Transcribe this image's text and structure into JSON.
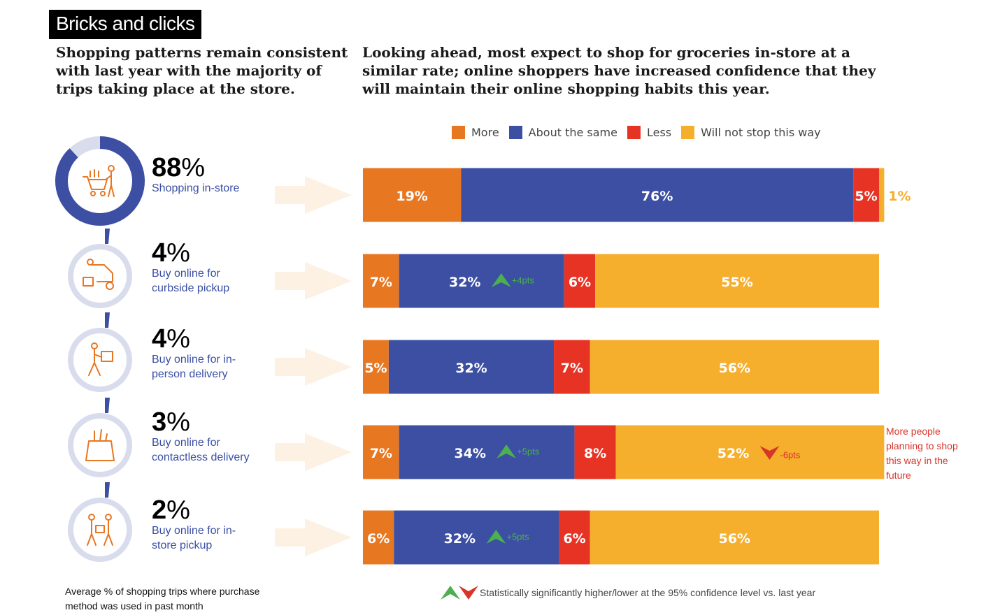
{
  "title": "Bricks and clicks",
  "left_heading": "Shopping patterns remain consistent with last year with the majority of trips taking place at the store.",
  "right_heading": "Looking ahead, most expect to shop for groceries in-store at a similar rate; online shoppers have increased confidence that they will maintain their online shopping habits this year.",
  "methods": [
    {
      "pct_num": "88",
      "pct_sign": "%",
      "label": "Shopping in-store",
      "icon": "shopping-cart-icon",
      "share": 88
    },
    {
      "pct_num": "4",
      "pct_sign": "%",
      "label": "Buy online for curbside pickup",
      "icon": "curbside-pickup-icon",
      "share": 4
    },
    {
      "pct_num": "4",
      "pct_sign": "%",
      "label": "Buy online for in-person delivery",
      "icon": "delivery-person-icon",
      "share": 4
    },
    {
      "pct_num": "3",
      "pct_sign": "%",
      "label": "Buy online for contactless delivery",
      "icon": "grocery-bag-icon",
      "share": 3
    },
    {
      "pct_num": "2",
      "pct_sign": "%",
      "label": "Buy online for in-store pickup",
      "icon": "in-store-pickup-icon",
      "share": 2
    }
  ],
  "footnote_left": "Average % of shopping trips where purchase method was used in past month",
  "footnote_right": "Statistically significantly higher/lower at the 95% confidence level vs. last year",
  "side_note": "More people planning to shop this way in the future",
  "colors": {
    "more": "#e87722",
    "same": "#3c4fa3",
    "less": "#e63323",
    "will_not_stop": "#f6ae2d",
    "up": "#4caf50",
    "down": "#d8352a",
    "arrow_bg": "#fdf1e4",
    "ring_bg": "#d9dcec"
  },
  "chart_data": {
    "type": "bar",
    "orientation": "horizontal",
    "stacked": true,
    "categories": [
      "Shopping in-store",
      "Buy online for curbside pickup",
      "Buy online for in-person delivery",
      "Buy online for contactless delivery",
      "Buy online for in-store pickup"
    ],
    "series": [
      {
        "name": "More",
        "values": [
          19,
          7,
          5,
          7,
          6
        ],
        "labels": [
          "19%",
          "7%",
          "5%",
          "7%",
          "6%"
        ]
      },
      {
        "name": "About the same",
        "values": [
          76,
          32,
          32,
          34,
          32
        ],
        "labels": [
          "76%",
          "32%",
          "32%",
          "34%",
          "32%"
        ]
      },
      {
        "name": "Less",
        "values": [
          5,
          6,
          7,
          8,
          6
        ],
        "labels": [
          "5%",
          "6%",
          "7%",
          "8%",
          "6%"
        ]
      },
      {
        "name": "Will not stop this way",
        "values": [
          1,
          55,
          56,
          52,
          56
        ],
        "labels": [
          "1%",
          "55%",
          "56%",
          "52%",
          "56%"
        ]
      }
    ],
    "xlim": [
      0,
      100
    ],
    "legend": "top",
    "annotations": [
      {
        "row": 1,
        "series": "About the same",
        "direction": "up",
        "text": "+4pts"
      },
      {
        "row": 3,
        "series": "About the same",
        "direction": "up",
        "text": "+5pts"
      },
      {
        "row": 3,
        "series": "Will not stop this way",
        "direction": "down",
        "text": "-6pts"
      },
      {
        "row": 4,
        "series": "About the same",
        "direction": "up",
        "text": "+5pts"
      }
    ]
  }
}
